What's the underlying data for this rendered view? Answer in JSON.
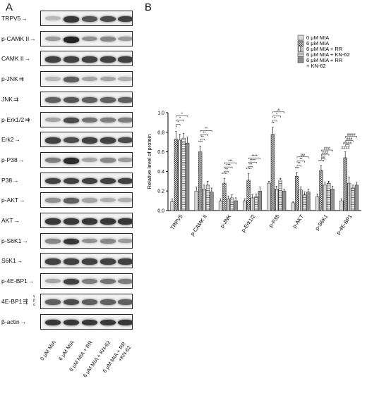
{
  "panel_a_label": "A",
  "panel_b_label": "B",
  "blots": [
    {
      "label": "TRPV5",
      "mark": "→",
      "bands": [
        0.25,
        0.9,
        0.75,
        0.8,
        0.85
      ]
    },
    {
      "label": "p-CAMK II",
      "mark": "→",
      "bands": [
        0.4,
        1.0,
        0.45,
        0.5,
        0.4
      ]
    },
    {
      "label": "CAMK II",
      "mark": "→",
      "bands": [
        0.85,
        0.85,
        0.85,
        0.85,
        0.85
      ]
    },
    {
      "label": "p-JNK",
      "mark": "⇉",
      "bands": [
        0.25,
        0.7,
        0.35,
        0.35,
        0.3
      ]
    },
    {
      "label": "JNK",
      "mark": "⇉",
      "bands": [
        0.7,
        0.75,
        0.7,
        0.7,
        0.7
      ]
    },
    {
      "label": "p-Erk1/2",
      "mark": "⇉",
      "bands": [
        0.35,
        0.8,
        0.6,
        0.55,
        0.55
      ]
    },
    {
      "label": "Erk2",
      "mark": "→",
      "bands": [
        0.85,
        0.8,
        0.85,
        0.85,
        0.8
      ]
    },
    {
      "label": "p-P38",
      "mark": "→",
      "bands": [
        0.55,
        0.95,
        0.35,
        0.5,
        0.4
      ]
    },
    {
      "label": "P38",
      "mark": "→",
      "bands": [
        0.85,
        0.85,
        0.85,
        0.85,
        0.85
      ]
    },
    {
      "label": "p-AKT",
      "mark": "→",
      "bands": [
        0.45,
        0.7,
        0.35,
        0.3,
        0.3
      ]
    },
    {
      "label": "AKT",
      "mark": "→",
      "bands": [
        0.9,
        0.9,
        0.9,
        0.9,
        0.9
      ]
    },
    {
      "label": "p-S6K1",
      "mark": "→",
      "bands": [
        0.5,
        0.9,
        0.45,
        0.5,
        0.4
      ]
    },
    {
      "label": "S6K1",
      "mark": "→",
      "bands": [
        0.85,
        0.85,
        0.85,
        0.85,
        0.85
      ]
    },
    {
      "label": "p-4E-BP1",
      "mark": "→",
      "bands": [
        0.35,
        0.85,
        0.55,
        0.6,
        0.55
      ]
    },
    {
      "label": "4E-BP1",
      "mark": "⇶",
      "bands": [
        0.7,
        0.8,
        0.7,
        0.7,
        0.7
      ]
    },
    {
      "label": "β-actin",
      "mark": "→",
      "bands": [
        0.9,
        0.9,
        0.9,
        0.9,
        0.9
      ]
    }
  ],
  "blot_annotations": {
    "gamma": "γ",
    "beta": "β",
    "alpha": "α"
  },
  "sample_labels": [
    "0 μM MIA",
    "6 μM MIA",
    "6 μM MIA + RR",
    "6 μM MIA + KN-62",
    "6 μM MIA + RR\n+KN-62"
  ],
  "chart_data": {
    "type": "bar",
    "title": "",
    "xlabel": "",
    "ylabel": "Relative level of protein",
    "ylim": [
      0,
      1.0
    ],
    "yticks": [
      "0.0",
      "0.2",
      "0.4",
      "0.6",
      "0.8",
      "1.0"
    ],
    "categories": [
      "TRPV5",
      "p-CAMK II",
      "p-JNK",
      "p-Erk1/2",
      "p-P38",
      "p-AKT",
      "p-S6K1",
      "p-4E-BP1"
    ],
    "legend_position": "top-right",
    "series": [
      {
        "name": "0 μM MIA",
        "values": [
          0.09,
          0.2,
          0.1,
          0.1,
          0.28,
          0.08,
          0.14,
          0.1
        ],
        "errors": [
          0.03,
          0.04,
          0.02,
          0.02,
          0.02,
          0.01,
          0.03,
          0.02
        ],
        "fill": "#d9d9d9",
        "pattern": "none"
      },
      {
        "name": "6 μM MIA",
        "values": [
          0.73,
          0.6,
          0.28,
          0.31,
          0.78,
          0.35,
          0.41,
          0.54
        ],
        "errors": [
          0.08,
          0.06,
          0.05,
          0.07,
          0.07,
          0.04,
          0.05,
          0.06
        ],
        "fill": "#ffffff",
        "pattern": "checker"
      },
      {
        "name": "6 μM MIA + RR",
        "values": [
          0.72,
          0.22,
          0.12,
          0.13,
          0.22,
          0.21,
          0.26,
          0.28
        ],
        "errors": [
          0.06,
          0.04,
          0.03,
          0.03,
          0.03,
          0.03,
          0.03,
          0.06
        ],
        "fill": "#efefef",
        "pattern": "vlines"
      },
      {
        "name": "6 μM MIA + KN-62",
        "values": [
          0.74,
          0.26,
          0.13,
          0.14,
          0.31,
          0.16,
          0.28,
          0.23
        ],
        "errors": [
          0.05,
          0.04,
          0.03,
          0.03,
          0.02,
          0.03,
          0.02,
          0.03
        ],
        "fill": "#f6f6f6",
        "pattern": "hlines"
      },
      {
        "name": "6 μM MIA + RR\n+ KN-62",
        "values": [
          0.69,
          0.19,
          0.1,
          0.2,
          0.2,
          0.19,
          0.22,
          0.26
        ],
        "errors": [
          0.06,
          0.04,
          0.03,
          0.04,
          0.02,
          0.03,
          0.03,
          0.03
        ],
        "fill": "#8f8f8f",
        "pattern": "none"
      }
    ],
    "annotations": {
      "TRPV5": {
        "marks": [
          "*",
          "*",
          "*",
          "*"
        ]
      },
      "p-CAMK II": {
        "marks": [
          "***",
          "**",
          "**",
          "**"
        ]
      },
      "p-JNK": {
        "marks": [
          "****",
          "**",
          "***",
          "***"
        ]
      },
      "p-Erk1/2": {
        "marks": [
          "****",
          "**",
          "****",
          "****"
        ]
      },
      "p-P38": {
        "marks": [
          "**",
          "*",
          "*",
          "#"
        ]
      },
      "p-AKT": {
        "marks": [
          "***",
          "**",
          "**",
          "##"
        ]
      },
      "p-S6K1": {
        "marks": [
          "****",
          "##",
          "###",
          "###"
        ]
      },
      "p-4E-BP1": {
        "marks": [
          "####",
          "####",
          "###",
          "####"
        ]
      }
    }
  }
}
